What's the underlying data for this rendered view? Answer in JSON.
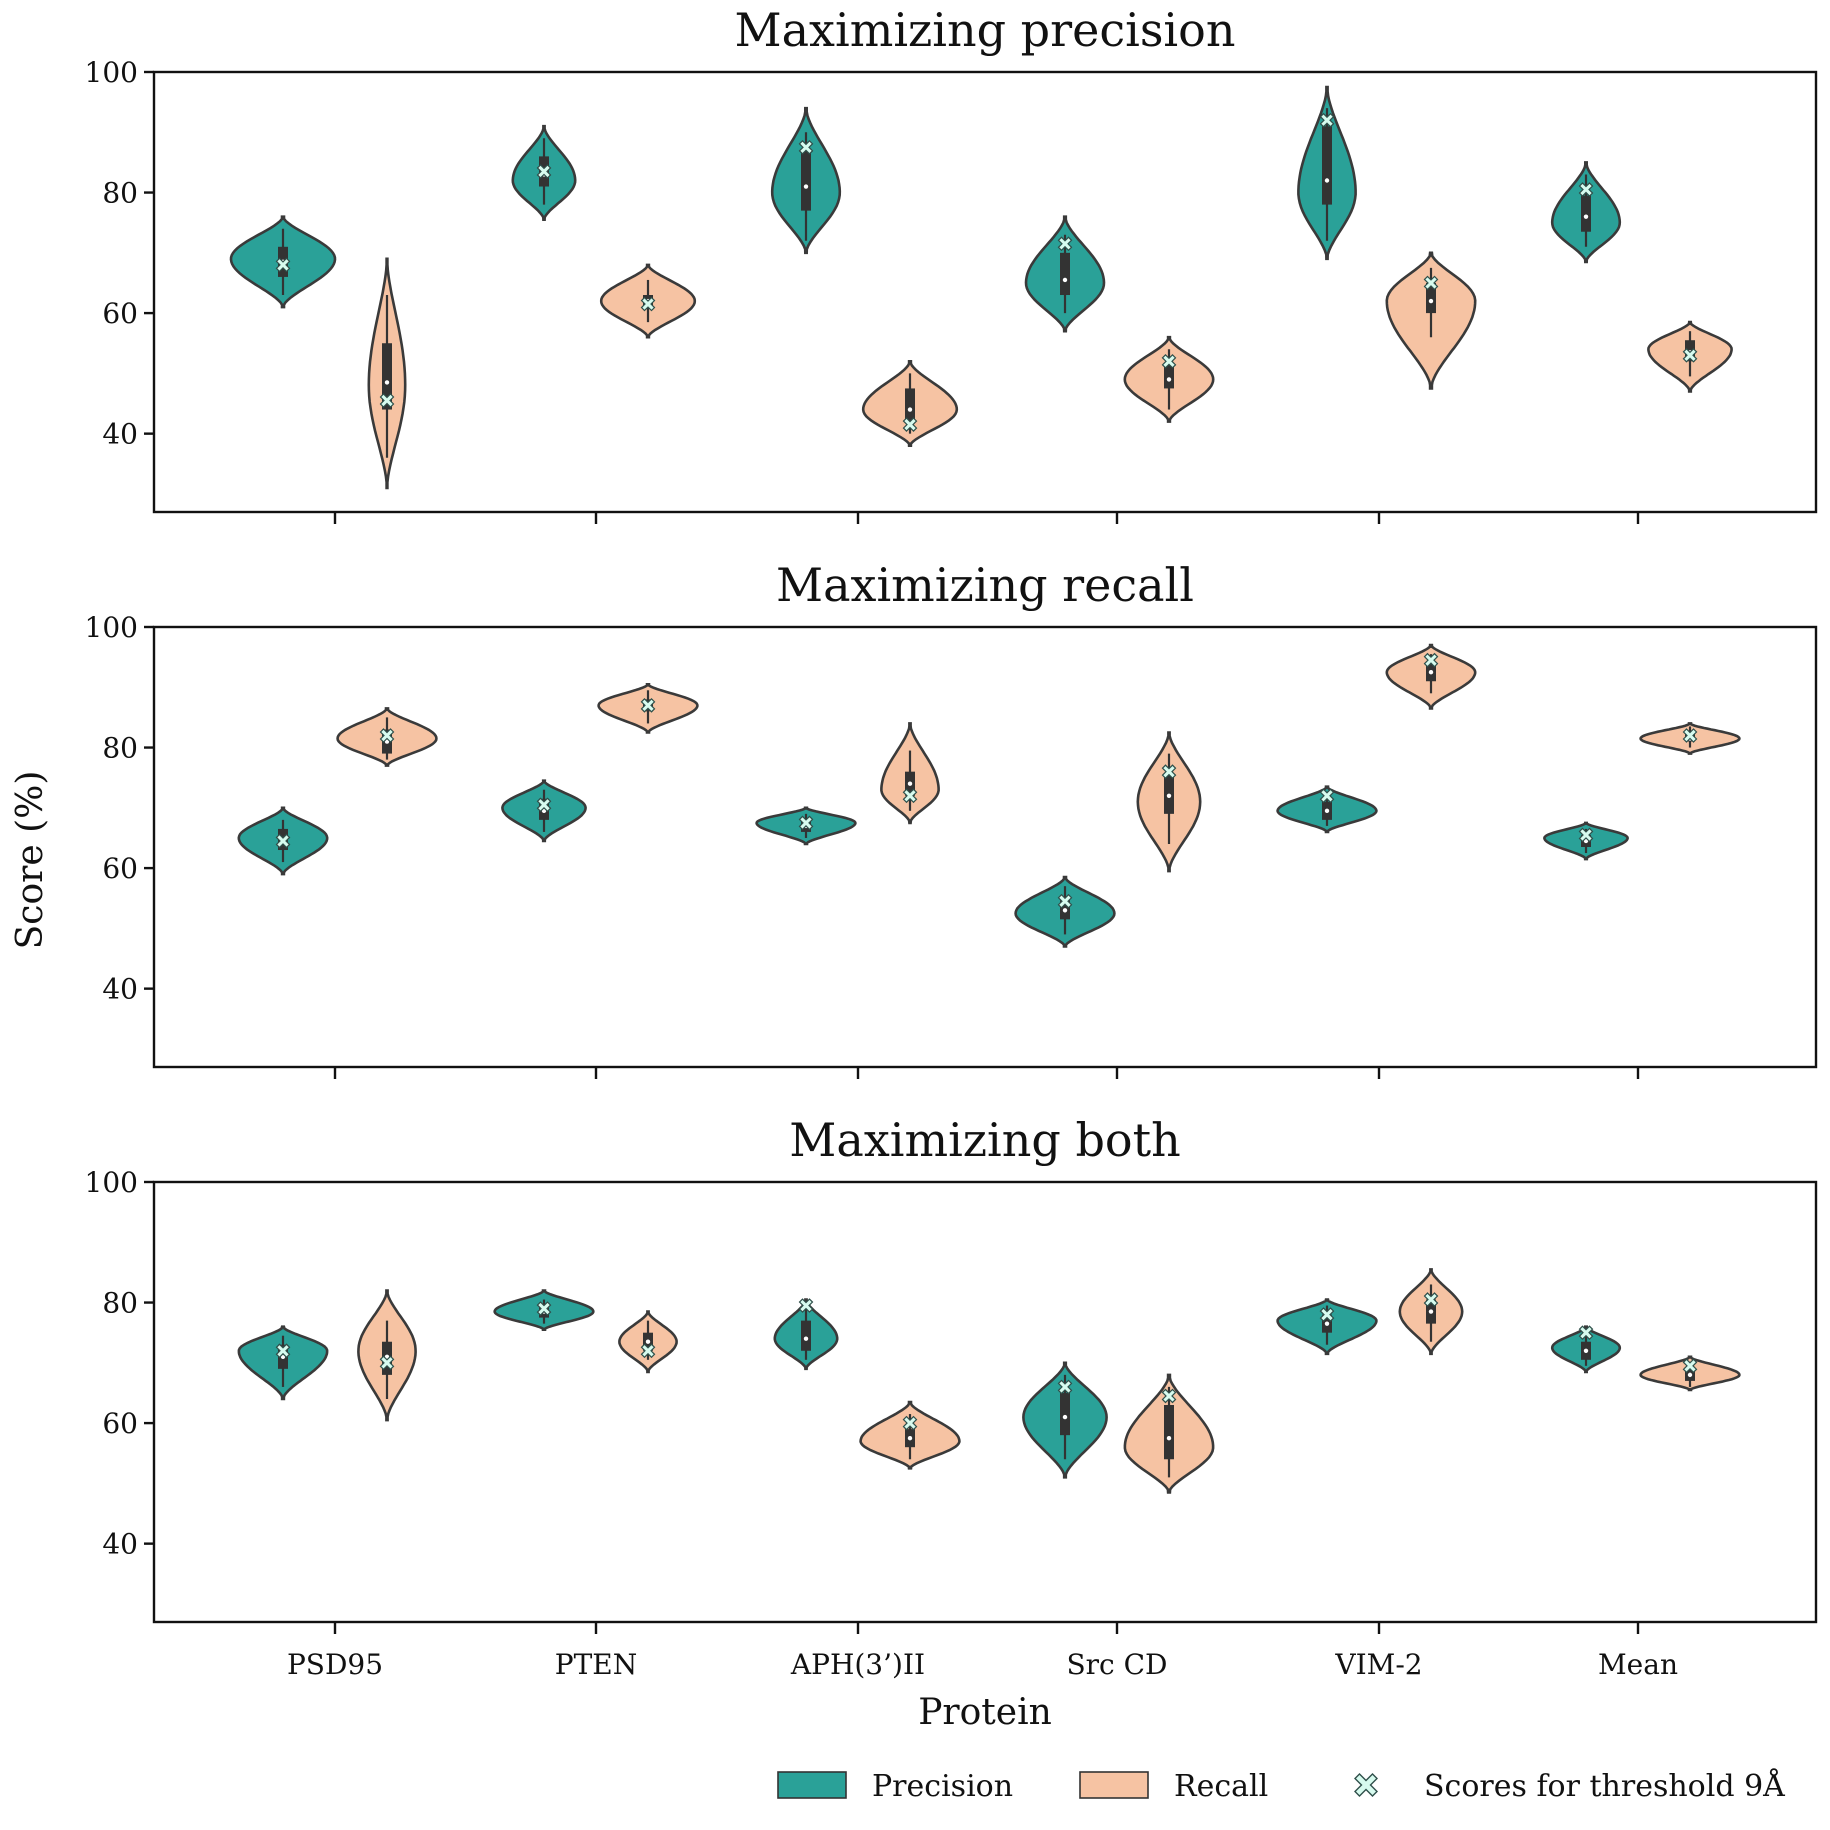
{
  "chart_data": {
    "type": "violin",
    "categories": [
      "PSD95",
      "PTEN",
      "APH(3’)II",
      "Src CD",
      "VIM-2",
      "Mean"
    ],
    "xlabel": "Protein",
    "ylabel": "Score (%)",
    "ylim": [
      27,
      100
    ],
    "yticks": [
      40,
      60,
      80,
      100
    ],
    "colors": {
      "Precision": "#2aa198",
      "Recall": "#f6c3a3",
      "marker": "#d7fbef"
    },
    "legend": {
      "placement": "bottom-right",
      "entries": [
        "Precision",
        "Recall",
        "Scores for threshold 9Å"
      ]
    },
    "panels": [
      {
        "title": "Maximizing precision",
        "series": [
          {
            "name": "Precision",
            "violins": [
              {
                "lo": 61,
                "hi": 76,
                "q1": 66,
                "median": 68.5,
                "q3": 71,
                "wlo": 63,
                "whi": 74,
                "mode": 69,
                "width": 1.0,
                "score": 68
              },
              {
                "lo": 75.5,
                "hi": 91,
                "q1": 81,
                "median": 83,
                "q3": 86,
                "wlo": 78,
                "whi": 89,
                "mode": 82,
                "width": 0.6,
                "score": 83.5
              },
              {
                "lo": 70,
                "hi": 94,
                "q1": 77,
                "median": 81,
                "q3": 87,
                "wlo": 72,
                "whi": 90,
                "mode": 80,
                "width": 0.65,
                "score": 87.5
              },
              {
                "lo": 57,
                "hi": 76,
                "q1": 63,
                "median": 65.5,
                "q3": 70,
                "wlo": 60,
                "whi": 73,
                "mode": 65,
                "width": 0.75,
                "score": 71.5
              },
              {
                "lo": 69,
                "hi": 97.5,
                "q1": 78,
                "median": 82,
                "q3": 91,
                "wlo": 72,
                "whi": 94,
                "mode": 80,
                "width": 0.55,
                "score": 92
              },
              {
                "lo": 68.5,
                "hi": 85,
                "q1": 73.5,
                "median": 76,
                "q3": 79.5,
                "wlo": 71,
                "whi": 83,
                "mode": 75,
                "width": 0.65,
                "score": 80.5
              }
            ]
          },
          {
            "name": "Recall",
            "violins": [
              {
                "lo": 31,
                "hi": 69,
                "q1": 44,
                "median": 48.5,
                "q3": 55,
                "wlo": 36,
                "whi": 63,
                "mode": 48,
                "width": 0.35,
                "score": 45.5
              },
              {
                "lo": 56,
                "hi": 68,
                "q1": 61,
                "median": 62,
                "q3": 63,
                "wlo": 58.5,
                "whi": 65.5,
                "mode": 62,
                "width": 0.9,
                "score": 61.5
              },
              {
                "lo": 38,
                "hi": 52,
                "q1": 42,
                "median": 44,
                "q3": 47.5,
                "wlo": 40,
                "whi": 50,
                "mode": 44,
                "width": 0.9,
                "score": 41.5
              },
              {
                "lo": 42,
                "hi": 56,
                "q1": 47.5,
                "median": 49,
                "q3": 51.5,
                "wlo": 44,
                "whi": 54,
                "mode": 49,
                "width": 0.85,
                "score": 52
              },
              {
                "lo": 47.5,
                "hi": 70,
                "q1": 60,
                "median": 62,
                "q3": 65,
                "wlo": 56,
                "whi": 67.5,
                "mode": 62,
                "width": 0.85,
                "score": 65
              },
              {
                "lo": 47,
                "hi": 58.5,
                "q1": 52,
                "median": 53.5,
                "q3": 55.5,
                "wlo": 49.5,
                "whi": 57,
                "mode": 54,
                "width": 0.8,
                "score": 53
              }
            ]
          }
        ]
      },
      {
        "title": "Maximizing recall",
        "series": [
          {
            "name": "Precision",
            "violins": [
              {
                "lo": 59,
                "hi": 70,
                "q1": 63,
                "median": 64.5,
                "q3": 66.5,
                "wlo": 61,
                "whi": 68,
                "mode": 65,
                "width": 0.85,
                "score": 64.5
              },
              {
                "lo": 64.5,
                "hi": 74.5,
                "q1": 68,
                "median": 69.5,
                "q3": 71.5,
                "wlo": 66,
                "whi": 73,
                "mode": 70,
                "width": 0.8,
                "score": 70.5
              },
              {
                "lo": 64,
                "hi": 70,
                "q1": 66,
                "median": 67,
                "q3": 68,
                "wlo": 65,
                "whi": 69,
                "mode": 67.5,
                "width": 0.95,
                "score": 67.5
              },
              {
                "lo": 47,
                "hi": 58.5,
                "q1": 51.5,
                "median": 53,
                "q3": 55,
                "wlo": 49,
                "whi": 57,
                "mode": 52.5,
                "width": 0.95,
                "score": 54.5
              },
              {
                "lo": 66,
                "hi": 73.5,
                "q1": 68,
                "median": 69.5,
                "q3": 71,
                "wlo": 67,
                "whi": 72,
                "mode": 69.5,
                "width": 0.95,
                "score": 72
              },
              {
                "lo": 61.5,
                "hi": 67.5,
                "q1": 63.5,
                "median": 64.5,
                "q3": 65.5,
                "wlo": 62.5,
                "whi": 66.5,
                "mode": 65,
                "width": 0.8,
                "score": 65.5
              }
            ]
          },
          {
            "name": "Recall",
            "violins": [
              {
                "lo": 77,
                "hi": 86.5,
                "q1": 79,
                "median": 81,
                "q3": 83,
                "wlo": 78,
                "whi": 85,
                "mode": 81.5,
                "width": 0.95,
                "score": 82
              },
              {
                "lo": 82.5,
                "hi": 90.5,
                "q1": 86,
                "median": 87,
                "q3": 88,
                "wlo": 84,
                "whi": 89.5,
                "mode": 87,
                "width": 0.95,
                "score": 87
              },
              {
                "lo": 67.5,
                "hi": 84,
                "q1": 72,
                "median": 74,
                "q3": 76,
                "wlo": 69.5,
                "whi": 79.5,
                "mode": 73,
                "width": 0.55,
                "score": 72
              },
              {
                "lo": 59.5,
                "hi": 82.5,
                "q1": 69,
                "median": 72,
                "q3": 75.5,
                "wlo": 64,
                "whi": 79,
                "mode": 71,
                "width": 0.6,
                "score": 76
              },
              {
                "lo": 86.5,
                "hi": 97,
                "q1": 91,
                "median": 92.5,
                "q3": 94,
                "wlo": 89,
                "whi": 95.5,
                "mode": 92.5,
                "width": 0.85,
                "score": 94.5
              },
              {
                "lo": 79,
                "hi": 84,
                "q1": 81,
                "median": 81.5,
                "q3": 82.5,
                "wlo": 80,
                "whi": 83.5,
                "mode": 81.5,
                "width": 0.95,
                "score": 82
              }
            ]
          }
        ]
      },
      {
        "title": "Maximizing both",
        "series": [
          {
            "name": "Precision",
            "violins": [
              {
                "lo": 64,
                "hi": 76,
                "q1": 69,
                "median": 71,
                "q3": 73,
                "wlo": 66,
                "whi": 74.5,
                "mode": 72,
                "width": 0.85,
                "score": 72
              },
              {
                "lo": 75.5,
                "hi": 82,
                "q1": 77.5,
                "median": 78.5,
                "q3": 79.5,
                "wlo": 76.5,
                "whi": 80.5,
                "mode": 78.5,
                "width": 0.95,
                "score": 79
              },
              {
                "lo": 69,
                "hi": 80.5,
                "q1": 72,
                "median": 74,
                "q3": 77,
                "wlo": 70.5,
                "whi": 79,
                "mode": 74,
                "width": 0.6,
                "score": 79.5
              },
              {
                "lo": 51,
                "hi": 70,
                "q1": 58,
                "median": 61,
                "q3": 65,
                "wlo": 54,
                "whi": 68,
                "mode": 61,
                "width": 0.8,
                "score": 66
              },
              {
                "lo": 71.5,
                "hi": 80.5,
                "q1": 75,
                "median": 76.5,
                "q3": 78,
                "wlo": 73,
                "whi": 79.5,
                "mode": 77,
                "width": 0.95,
                "score": 78
              },
              {
                "lo": 68.5,
                "hi": 76,
                "q1": 70.5,
                "median": 72,
                "q3": 73.5,
                "wlo": 69.5,
                "whi": 75,
                "mode": 72.5,
                "width": 0.65,
                "score": 75
              }
            ]
          },
          {
            "name": "Recall",
            "violins": [
              {
                "lo": 60.5,
                "hi": 82,
                "q1": 68,
                "median": 71,
                "q3": 73.5,
                "wlo": 64,
                "whi": 77,
                "mode": 72,
                "width": 0.55,
                "score": 70
              },
              {
                "lo": 68.5,
                "hi": 78.5,
                "q1": 72,
                "median": 73.5,
                "q3": 75,
                "wlo": 70.5,
                "whi": 77,
                "mode": 73.5,
                "width": 0.55,
                "score": 72
              },
              {
                "lo": 52.5,
                "hi": 63.5,
                "q1": 56,
                "median": 57.5,
                "q3": 59,
                "wlo": 54,
                "whi": 61.5,
                "mode": 57,
                "width": 0.95,
                "score": 60
              },
              {
                "lo": 48.5,
                "hi": 68,
                "q1": 54,
                "median": 57.5,
                "q3": 63,
                "wlo": 51,
                "whi": 66,
                "mode": 56,
                "width": 0.85,
                "score": 64.5
              },
              {
                "lo": 71.5,
                "hi": 85.5,
                "q1": 76.5,
                "median": 78.5,
                "q3": 80.5,
                "wlo": 73.5,
                "whi": 83,
                "mode": 78.5,
                "width": 0.6,
                "score": 80.5
              },
              {
                "lo": 65.5,
                "hi": 71,
                "q1": 67,
                "median": 68,
                "q3": 69,
                "wlo": 66,
                "whi": 70,
                "mode": 68,
                "width": 0.95,
                "score": 69.5
              }
            ]
          }
        ]
      }
    ]
  }
}
